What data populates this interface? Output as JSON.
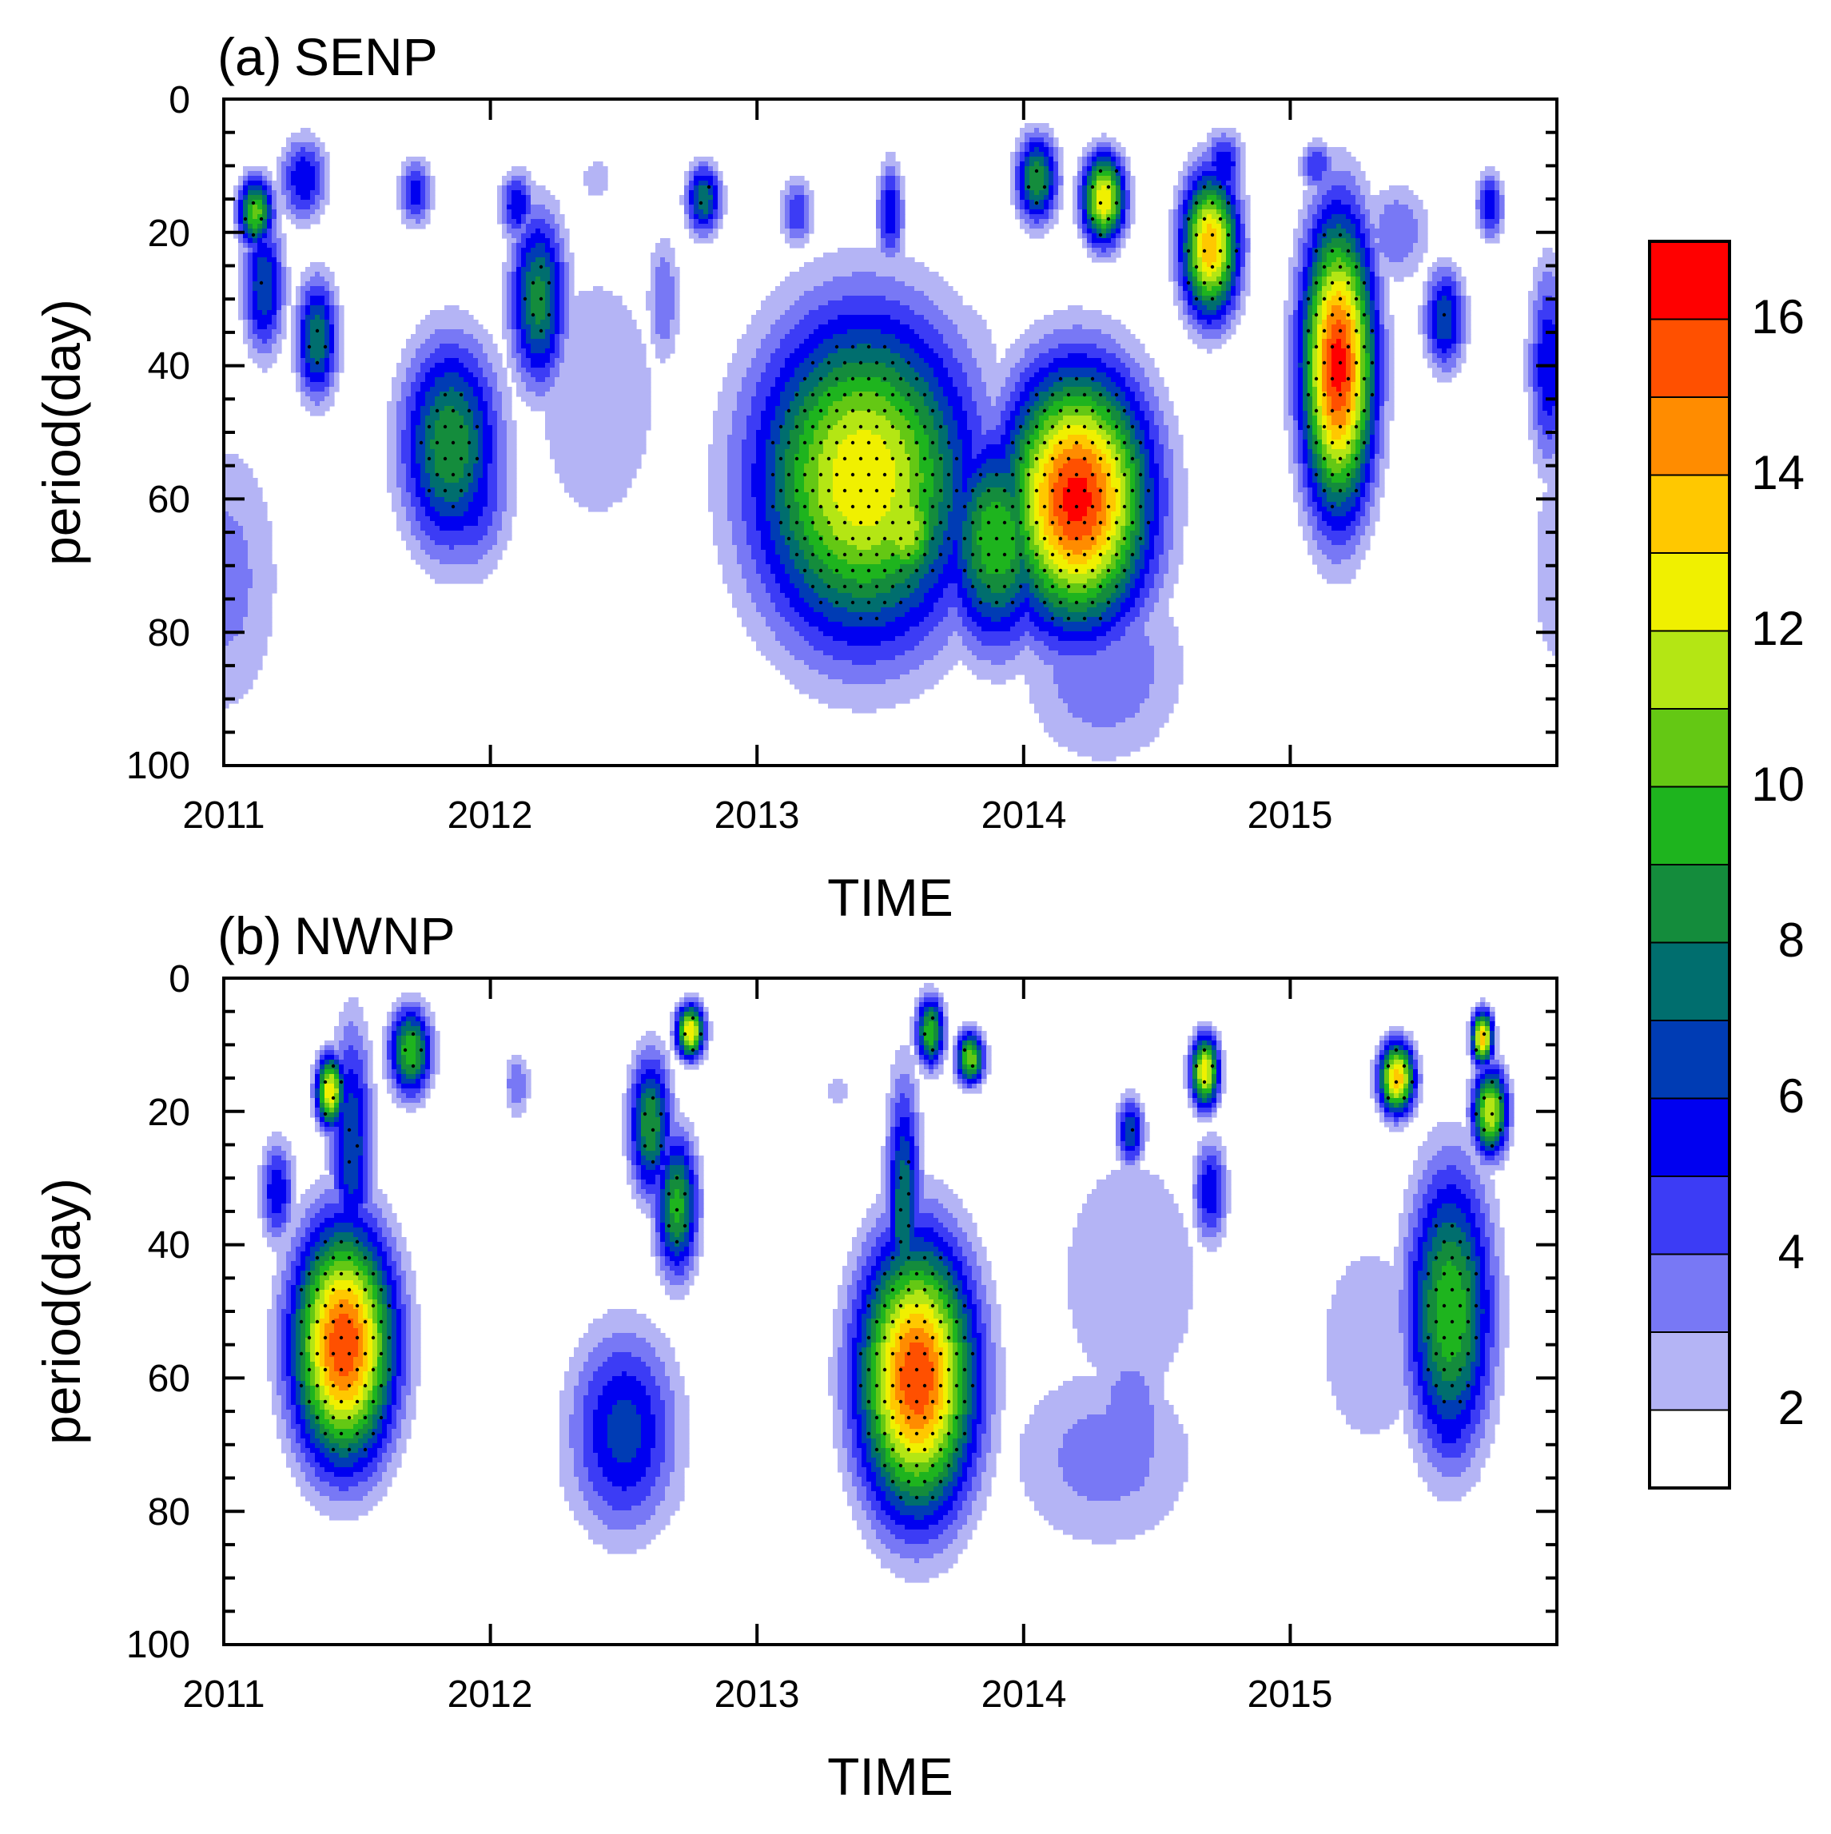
{
  "chart_data": {
    "type": "heatmap",
    "subtype": "wavelet power spectrum (filled contours, stippled significance)",
    "colorbar": {
      "levels": [
        2,
        3,
        4,
        5,
        6,
        7,
        8,
        9,
        10,
        11,
        12,
        13,
        14,
        15,
        16
      ],
      "colors": [
        "#ffffff",
        "#b4b4f5",
        "#7878f5",
        "#3c3cf5",
        "#0000f0",
        "#003cb4",
        "#006e6e",
        "#148c3c",
        "#1eb41e",
        "#64c814",
        "#b4e614",
        "#f0f000",
        "#ffc800",
        "#ff8c00",
        "#ff5000",
        "#ff0000"
      ],
      "tick_labels": [
        "2",
        "4",
        "6",
        "8",
        "10",
        "12",
        "14",
        "16"
      ]
    },
    "x_ticks": [
      "2011",
      "2012",
      "2013",
      "2014",
      "2015"
    ],
    "xlim": [
      2011,
      2016
    ],
    "y_ticks": [
      "0",
      "20",
      "40",
      "60",
      "80",
      "100"
    ],
    "ylim": [
      0,
      100
    ],
    "y_inverted": true,
    "panels": [
      {
        "tag": "(a)",
        "name": "SENP",
        "xlabel": "TIME",
        "ylabel": "period(day)",
        "features": [
          {
            "t": 2011.12,
            "p": 17,
            "value": 10.5,
            "ws": 0.05,
            "wp": 4
          },
          {
            "t": 2011.15,
            "p": 28,
            "value": 7,
            "ws": 0.06,
            "wp": 8
          },
          {
            "t": 2011.3,
            "p": 12,
            "value": 6,
            "ws": 0.07,
            "wp": 5
          },
          {
            "t": 2011.35,
            "p": 36,
            "value": 8,
            "ws": 0.06,
            "wp": 7
          },
          {
            "t": 2011.0,
            "p": 72,
            "value": 3.5,
            "ws": 0.18,
            "wp": 18
          },
          {
            "t": 2011.72,
            "p": 14,
            "value": 5.5,
            "ws": 0.05,
            "wp": 4
          },
          {
            "t": 2011.85,
            "p": 52,
            "value": 9,
            "ws": 0.14,
            "wp": 12
          },
          {
            "t": 2011.92,
            "p": 58,
            "value": 6,
            "ws": 0.12,
            "wp": 10
          },
          {
            "t": 2012.1,
            "p": 16,
            "value": 6,
            "ws": 0.05,
            "wp": 4
          },
          {
            "t": 2012.18,
            "p": 30,
            "value": 8.5,
            "ws": 0.08,
            "wp": 10
          },
          {
            "t": 2012.4,
            "p": 45,
            "value": 2.5,
            "ws": 0.3,
            "wp": 25
          },
          {
            "t": 2012.4,
            "p": 12,
            "value": 3,
            "ws": 0.05,
            "wp": 3
          },
          {
            "t": 2012.8,
            "p": 15,
            "value": 8,
            "ws": 0.05,
            "wp": 4
          },
          {
            "t": 2012.65,
            "p": 30,
            "value": 4,
            "ws": 0.05,
            "wp": 8
          },
          {
            "t": 2013.4,
            "p": 57,
            "value": 13,
            "ws": 0.3,
            "wp": 18
          },
          {
            "t": 2013.55,
            "p": 64,
            "value": 12,
            "ws": 0.12,
            "wp": 8
          },
          {
            "t": 2013.15,
            "p": 17,
            "value": 5,
            "ws": 0.05,
            "wp": 4
          },
          {
            "t": 2013.5,
            "p": 17,
            "value": 6,
            "ws": 0.04,
            "wp": 6
          },
          {
            "t": 2013.9,
            "p": 66,
            "value": 10,
            "ws": 0.15,
            "wp": 12
          },
          {
            "t": 2014.2,
            "p": 60,
            "value": 16.5,
            "ws": 0.2,
            "wp": 14
          },
          {
            "t": 2014.05,
            "p": 12,
            "value": 9,
            "ws": 0.06,
            "wp": 5
          },
          {
            "t": 2014.3,
            "p": 15,
            "value": 13,
            "ws": 0.06,
            "wp": 5
          },
          {
            "t": 2014.3,
            "p": 85,
            "value": 4,
            "ws": 0.25,
            "wp": 12
          },
          {
            "t": 2014.7,
            "p": 22,
            "value": 14,
            "ws": 0.08,
            "wp": 8
          },
          {
            "t": 2014.75,
            "p": 10,
            "value": 6,
            "ws": 0.06,
            "wp": 4
          },
          {
            "t": 2015.18,
            "p": 40,
            "value": 16.5,
            "ws": 0.1,
            "wp": 16
          },
          {
            "t": 2015.1,
            "p": 10,
            "value": 5,
            "ws": 0.05,
            "wp": 3
          },
          {
            "t": 2015.4,
            "p": 20,
            "value": 4,
            "ws": 0.1,
            "wp": 6
          },
          {
            "t": 2015.58,
            "p": 33,
            "value": 7,
            "ws": 0.06,
            "wp": 6
          },
          {
            "t": 2015.75,
            "p": 16,
            "value": 6,
            "ws": 0.04,
            "wp": 4
          },
          {
            "t": 2015.97,
            "p": 40,
            "value": 6,
            "ws": 0.06,
            "wp": 12
          },
          {
            "t": 2016.0,
            "p": 70,
            "value": 2.5,
            "ws": 0.12,
            "wp": 20
          },
          {
            "t": 2013.7,
            "p": 40,
            "value": 2.5,
            "ws": 0.3,
            "wp": 15
          }
        ]
      },
      {
        "tag": "(b)",
        "name": "NWNP",
        "xlabel": "TIME",
        "ylabel": "period(day)",
        "features": [
          {
            "t": 2011.45,
            "p": 55,
            "value": 16,
            "ws": 0.14,
            "wp": 13
          },
          {
            "t": 2011.4,
            "p": 17,
            "value": 13,
            "ws": 0.04,
            "wp": 4
          },
          {
            "t": 2011.48,
            "p": 25,
            "value": 7,
            "ws": 0.06,
            "wp": 14
          },
          {
            "t": 2011.7,
            "p": 11,
            "value": 10,
            "ws": 0.06,
            "wp": 5
          },
          {
            "t": 2011.2,
            "p": 32,
            "value": 6,
            "ws": 0.05,
            "wp": 6
          },
          {
            "t": 2012.1,
            "p": 16,
            "value": 4,
            "ws": 0.04,
            "wp": 4
          },
          {
            "t": 2012.5,
            "p": 68,
            "value": 6.5,
            "ws": 0.16,
            "wp": 12
          },
          {
            "t": 2012.5,
            "p": 75,
            "value": 2.5,
            "ws": 0.35,
            "wp": 14
          },
          {
            "t": 2012.6,
            "p": 22,
            "value": 9,
            "ws": 0.06,
            "wp": 8
          },
          {
            "t": 2012.7,
            "p": 34,
            "value": 9.5,
            "ws": 0.06,
            "wp": 8
          },
          {
            "t": 2012.75,
            "p": 8,
            "value": 13,
            "ws": 0.04,
            "wp": 3
          },
          {
            "t": 2013.6,
            "p": 60,
            "value": 16,
            "ws": 0.16,
            "wp": 15
          },
          {
            "t": 2013.55,
            "p": 35,
            "value": 8,
            "ws": 0.05,
            "wp": 15
          },
          {
            "t": 2013.65,
            "p": 8,
            "value": 10,
            "ws": 0.04,
            "wp": 4
          },
          {
            "t": 2013.8,
            "p": 12,
            "value": 11,
            "ws": 0.04,
            "wp": 3
          },
          {
            "t": 2013.3,
            "p": 17,
            "value": 2.5,
            "ws": 0.05,
            "wp": 3
          },
          {
            "t": 2014.3,
            "p": 72,
            "value": 3.5,
            "ws": 0.3,
            "wp": 12
          },
          {
            "t": 2014.4,
            "p": 68,
            "value": 4,
            "ws": 0.12,
            "wp": 12
          },
          {
            "t": 2014.4,
            "p": 23,
            "value": 7,
            "ws": 0.04,
            "wp": 4
          },
          {
            "t": 2014.68,
            "p": 14,
            "value": 13,
            "ws": 0.04,
            "wp": 4
          },
          {
            "t": 2014.7,
            "p": 32,
            "value": 6,
            "ws": 0.05,
            "wp": 6
          },
          {
            "t": 2014.4,
            "p": 45,
            "value": 2.5,
            "ws": 0.35,
            "wp": 25
          },
          {
            "t": 2015.6,
            "p": 50,
            "value": 10,
            "ws": 0.12,
            "wp": 16
          },
          {
            "t": 2015.6,
            "p": 65,
            "value": 6,
            "ws": 0.1,
            "wp": 8
          },
          {
            "t": 2015.4,
            "p": 15,
            "value": 14,
            "ws": 0.05,
            "wp": 4
          },
          {
            "t": 2015.72,
            "p": 9,
            "value": 14,
            "ws": 0.03,
            "wp": 3
          },
          {
            "t": 2015.75,
            "p": 20,
            "value": 12,
            "ws": 0.05,
            "wp": 5
          },
          {
            "t": 2015.3,
            "p": 55,
            "value": 2.5,
            "ws": 0.25,
            "wp": 20
          }
        ]
      }
    ]
  }
}
